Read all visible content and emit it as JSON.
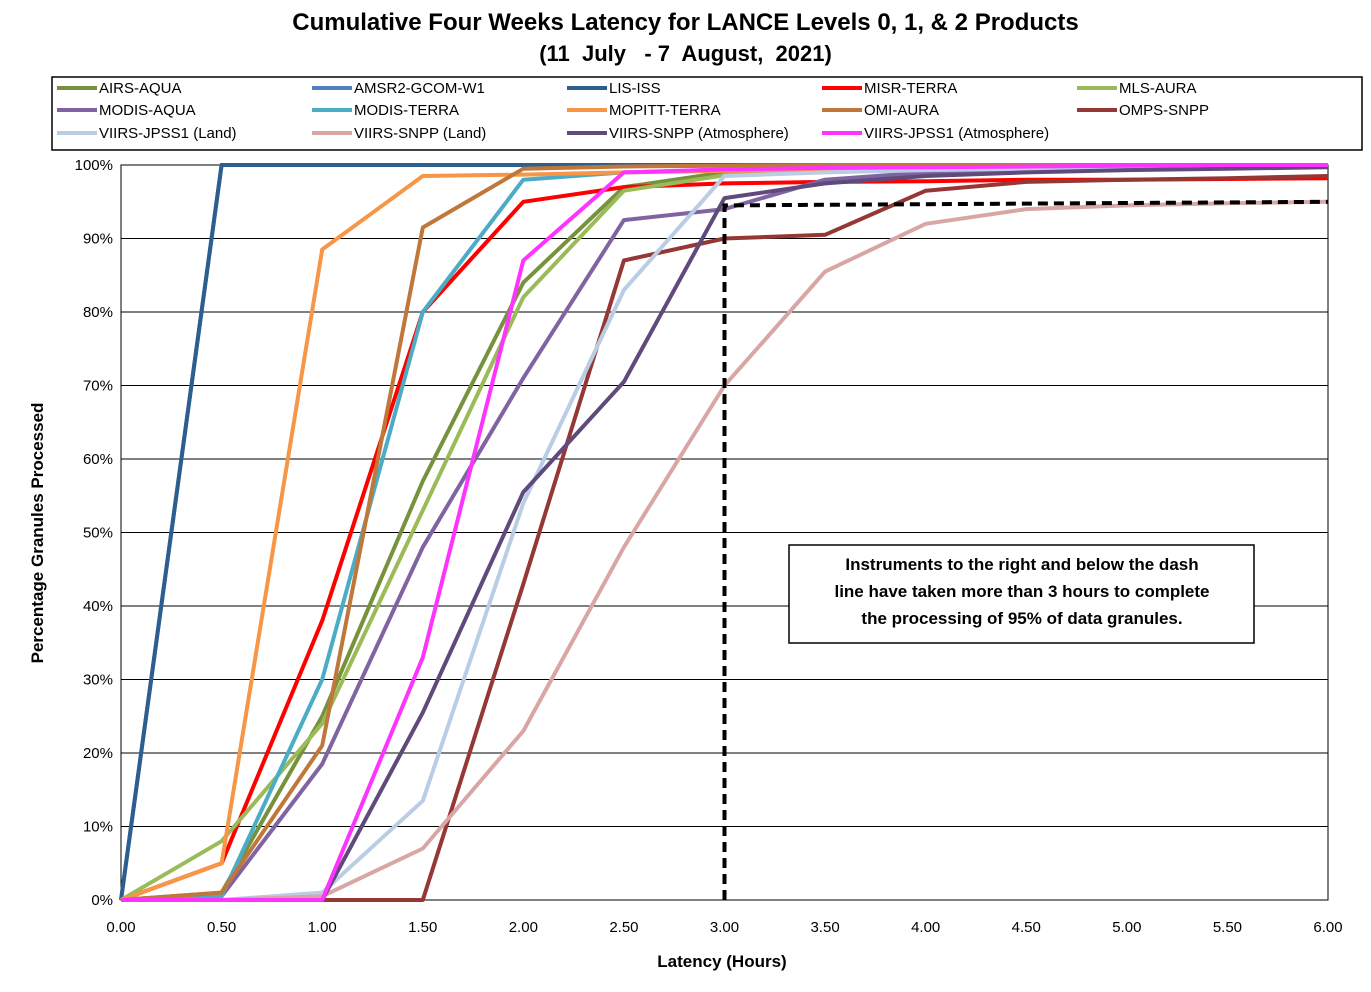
{
  "title": "Cumulative Four Weeks Latency  for LANCE Levels 0, 1, & 2 Products",
  "subtitle": "(11  July   - 7  August,  2021)",
  "chart_data": {
    "type": "line",
    "xlabel": "Latency (Hours)",
    "ylabel": "Percentage Granules Processed",
    "xlim": [
      0,
      6
    ],
    "ylim": [
      0,
      100
    ],
    "x": [
      0,
      0.5,
      1,
      1.5,
      2,
      2.5,
      3,
      3.5,
      4,
      4.5,
      5,
      5.5,
      6
    ],
    "x_tick_labels": [
      "0.00",
      "0.50",
      "1.00",
      "1.50",
      "2.00",
      "2.50",
      "3.00",
      "3.50",
      "4.00",
      "4.50",
      "5.00",
      "5.50",
      "6.00"
    ],
    "y_tick_labels": [
      "0%",
      "10%",
      "20%",
      "30%",
      "40%",
      "50%",
      "60%",
      "70%",
      "80%",
      "90%",
      "100%"
    ],
    "grid": "horizontal",
    "legend_position": "top",
    "series": [
      {
        "name": "AIRS-AQUA",
        "color": "#76923C",
        "values": [
          0,
          1,
          25,
          57,
          84,
          97,
          99,
          99.4,
          99.6,
          99.7,
          99.8,
          99.9,
          100
        ]
      },
      {
        "name": "AMSR2-GCOM-W1",
        "color": "#4F81BD",
        "values": [
          0,
          100,
          100,
          100,
          100,
          100,
          100,
          100,
          100,
          100,
          100,
          100,
          100
        ]
      },
      {
        "name": "LIS-ISS",
        "color": "#2E5E8E",
        "values": [
          0,
          100,
          100,
          100,
          100,
          100,
          100,
          100,
          100,
          100,
          100,
          100,
          100
        ]
      },
      {
        "name": "MISR-TERRA",
        "color": "#FF0000",
        "values": [
          0,
          5,
          38,
          80,
          95,
          97,
          97.5,
          97.7,
          97.8,
          98,
          98,
          98.1,
          98.2
        ]
      },
      {
        "name": "MLS-AURA",
        "color": "#9BBB59",
        "values": [
          0,
          8,
          24,
          53,
          82,
          96.5,
          98.6,
          99.2,
          99.5,
          99.7,
          99.8,
          99.9,
          100
        ]
      },
      {
        "name": "MODIS-AQUA",
        "color": "#8064A2",
        "values": [
          0,
          0.5,
          18.5,
          48,
          71,
          92.5,
          94,
          98,
          99,
          99.3,
          99.5,
          99.7,
          99.8
        ]
      },
      {
        "name": "MODIS-TERRA",
        "color": "#4BACC6",
        "values": [
          0,
          0.5,
          30,
          80,
          98,
          99,
          99.3,
          99.5,
          99.7,
          99.8,
          99.9,
          100,
          100
        ]
      },
      {
        "name": "MOPITT-TERRA",
        "color": "#F79646",
        "values": [
          0,
          5,
          88.5,
          98.5,
          98.7,
          99,
          99.2,
          99.4,
          99.5,
          99.6,
          99.7,
          99.8,
          100
        ]
      },
      {
        "name": "OMI-AURA",
        "color": "#C0773A",
        "values": [
          0,
          1,
          21,
          91.5,
          99.5,
          99.8,
          99.9,
          100,
          100,
          100,
          100,
          100,
          100
        ]
      },
      {
        "name": "OMPS-SNPP",
        "color": "#953735",
        "values": [
          0,
          0,
          0,
          0,
          43,
          87,
          90,
          90.5,
          96.5,
          97.7,
          98,
          98.2,
          98.5
        ]
      },
      {
        "name": "VIIRS-JPSS1 (Land)",
        "color": "#B9CDE5",
        "values": [
          0,
          0,
          1,
          13.5,
          54,
          83,
          98.5,
          99,
          99.3,
          99.5,
          99.6,
          99.8,
          100
        ]
      },
      {
        "name": "VIIRS-SNPP (Land)",
        "color": "#D8A7A5",
        "values": [
          0,
          0,
          0.5,
          7,
          23,
          48,
          70,
          85.5,
          92,
          94,
          94.5,
          94.8,
          95
        ]
      },
      {
        "name": "VIIRS-SNPP (Atmosphere)",
        "color": "#604A7B",
        "values": [
          0,
          0,
          0,
          25.5,
          55.5,
          70.5,
          95.5,
          97.5,
          98.5,
          99,
          99.3,
          99.5,
          99.7
        ]
      },
      {
        "name": "VIIRS-JPSS1 (Atmosphere)",
        "color": "#FF33FF",
        "values": [
          0,
          0,
          0,
          33,
          87,
          99,
          99.4,
          99.6,
          99.7,
          99.8,
          99.9,
          100,
          100
        ]
      }
    ],
    "threshold_line": {
      "color": "#000000",
      "points": [
        [
          3.0,
          0
        ],
        [
          3.0,
          94.5
        ],
        [
          6.0,
          95
        ]
      ]
    },
    "annotation": [
      "Instruments to the right and below the dash",
      "line have taken more than 3 hours to complete",
      "the processing of 95% of data granules."
    ]
  }
}
